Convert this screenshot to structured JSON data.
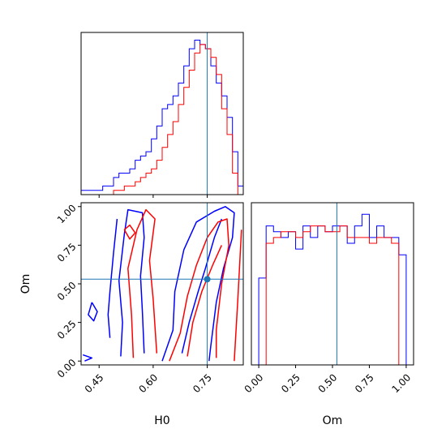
{
  "chart_data": {
    "type": "corner",
    "parameters": [
      "H0",
      "Om"
    ],
    "truth": {
      "H0": 0.75,
      "Om": 0.53
    },
    "colors": {
      "series_a": "#0000ff",
      "series_b": "#ff0000",
      "truth": "#1f77b4"
    },
    "grid": false,
    "panels": {
      "h0_histogram": {
        "type": "histogram",
        "xlim": [
          0.4,
          0.85
        ],
        "bin_edges": [
          0.4,
          0.415,
          0.43,
          0.445,
          0.46,
          0.475,
          0.49,
          0.505,
          0.52,
          0.535,
          0.55,
          0.565,
          0.58,
          0.595,
          0.61,
          0.625,
          0.64,
          0.655,
          0.67,
          0.685,
          0.7,
          0.715,
          0.73,
          0.745,
          0.76,
          0.775,
          0.79,
          0.805,
          0.82,
          0.835,
          0.85
        ],
        "series": [
          {
            "color": "#0000ff",
            "values": [
              1,
              1,
              1,
              1,
              2,
              2,
              4,
              5,
              5,
              6,
              8,
              9,
              10,
              13,
              16,
              20,
              21,
              23,
              26,
              30,
              34,
              36,
              35,
              34,
              30,
              26,
              23,
              18,
              10,
              2
            ]
          },
          {
            "color": "#ff0000",
            "values": [
              0,
              0,
              0,
              0,
              0,
              0,
              1,
              1,
              2,
              2,
              3,
              4,
              5,
              6,
              8,
              11,
              14,
              17,
              21,
              25,
              29,
              33,
              35,
              34,
              32,
              28,
              20,
              14,
              5,
              0
            ]
          }
        ]
      },
      "om_histogram": {
        "type": "histogram",
        "xlim": [
          0,
          1
        ],
        "xticks": [
          "0.00",
          "0.25",
          "0.50",
          "0.75",
          "1.00"
        ],
        "bin_edges": [
          0,
          0.05,
          0.1,
          0.15,
          0.2,
          0.25,
          0.3,
          0.35,
          0.4,
          0.45,
          0.5,
          0.55,
          0.6,
          0.65,
          0.7,
          0.75,
          0.8,
          0.85,
          0.9,
          0.95,
          1.0
        ],
        "series": [
          {
            "color": "#0000ff",
            "values": [
              15,
              24,
              23,
              22,
              23,
              20,
              24,
              22,
              24,
              23,
              24,
              24,
              21,
              24,
              26,
              22,
              24,
              22,
              22,
              19
            ]
          },
          {
            "color": "#ff0000",
            "values": [
              0,
              21,
              22,
              23,
              23,
              22,
              23,
              24,
              24,
              23,
              23,
              24,
              22,
              22,
              22,
              21,
              22,
              22,
              21,
              0
            ]
          }
        ]
      },
      "joint": {
        "type": "contour",
        "xlim": [
          0.4,
          0.85
        ],
        "ylim": [
          0,
          1
        ],
        "xticks": [
          "0.45",
          "0.60",
          "0.75"
        ],
        "yticks": [
          "0.00",
          "0.25",
          "0.50",
          "0.75",
          "1.00"
        ],
        "xlabel": "H0",
        "ylabel": "Om",
        "contours": [
          {
            "color": "#0000ff",
            "points": [
              [
                0.51,
                0.03
              ],
              [
                0.515,
                0.25
              ],
              [
                0.505,
                0.52
              ],
              [
                0.52,
                0.82
              ],
              [
                0.53,
                0.98
              ],
              [
                0.57,
                0.96
              ],
              [
                0.575,
                0.8
              ],
              [
                0.565,
                0.55
              ],
              [
                0.57,
                0.32
              ],
              [
                0.575,
                0.05
              ]
            ]
          },
          {
            "color": "#0000ff",
            "points": [
              [
                0.5,
                0.92
              ],
              [
                0.49,
                0.7
              ],
              [
                0.48,
                0.45
              ],
              [
                0.475,
                0.3
              ],
              [
                0.48,
                0.15
              ]
            ]
          },
          {
            "color": "#0000ff",
            "points": [
              [
                0.43,
                0.38
              ],
              [
                0.445,
                0.32
              ],
              [
                0.435,
                0.26
              ],
              [
                0.42,
                0.3
              ],
              [
                0.43,
                0.38
              ]
            ]
          },
          {
            "color": "#0000ff",
            "points": [
              [
                0.405,
                0.04
              ],
              [
                0.43,
                0.02
              ],
              [
                0.41,
                0.0
              ]
            ]
          },
          {
            "color": "#0000ff",
            "points": [
              [
                0.625,
                0.0
              ],
              [
                0.655,
                0.2
              ],
              [
                0.66,
                0.45
              ],
              [
                0.685,
                0.72
              ],
              [
                0.72,
                0.9
              ],
              [
                0.77,
                0.97
              ],
              [
                0.8,
                1.0
              ],
              [
                0.825,
                0.96
              ],
              [
                0.82,
                0.8
              ],
              [
                0.795,
                0.6
              ],
              [
                0.775,
                0.38
              ],
              [
                0.76,
                0.1
              ],
              [
                0.755,
                0.0
              ]
            ]
          },
          {
            "color": "#0000ff",
            "points": [
              [
                0.68,
                0.05
              ],
              [
                0.7,
                0.25
              ],
              [
                0.725,
                0.45
              ],
              [
                0.745,
                0.6
              ],
              [
                0.77,
                0.8
              ],
              [
                0.79,
                0.92
              ]
            ]
          },
          {
            "color": "#ff0000",
            "points": [
              [
                0.545,
                0.02
              ],
              [
                0.54,
                0.3
              ],
              [
                0.53,
                0.6
              ],
              [
                0.555,
                0.85
              ],
              [
                0.58,
                0.98
              ],
              [
                0.605,
                0.92
              ],
              [
                0.59,
                0.65
              ],
              [
                0.6,
                0.4
              ],
              [
                0.61,
                0.05
              ]
            ]
          },
          {
            "color": "#ff0000",
            "points": [
              [
                0.52,
                0.85
              ],
              [
                0.535,
                0.79
              ],
              [
                0.55,
                0.83
              ],
              [
                0.535,
                0.88
              ],
              [
                0.52,
                0.85
              ]
            ]
          },
          {
            "color": "#ff0000",
            "points": [
              [
                0.645,
                0.0
              ],
              [
                0.675,
                0.18
              ],
              [
                0.695,
                0.42
              ],
              [
                0.72,
                0.62
              ],
              [
                0.75,
                0.8
              ],
              [
                0.78,
                0.9
              ],
              [
                0.805,
                0.92
              ],
              [
                0.81,
                0.75
              ],
              [
                0.79,
                0.5
              ],
              [
                0.775,
                0.2
              ],
              [
                0.775,
                0.02
              ]
            ]
          },
          {
            "color": "#ff0000",
            "points": [
              [
                0.695,
                0.03
              ],
              [
                0.71,
                0.25
              ],
              [
                0.735,
                0.45
              ],
              [
                0.765,
                0.62
              ],
              [
                0.79,
                0.75
              ]
            ]
          },
          {
            "color": "#ff0000",
            "points": [
              [
                0.825,
                0.0
              ],
              [
                0.835,
                0.4
              ],
              [
                0.845,
                0.85
              ]
            ]
          }
        ]
      }
    }
  }
}
